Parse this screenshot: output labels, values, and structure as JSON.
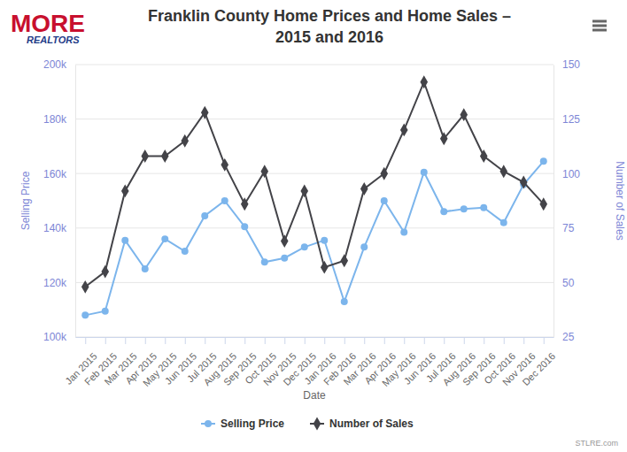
{
  "chart_data": {
    "type": "line",
    "title": "Franklin County Home Prices and Home Sales –\n2015 and 2016",
    "x_label": "Date",
    "y_label": "Selling Price",
    "y2_label": "Number of Sales",
    "annotations": [
      "MORE",
      "REALTORS",
      "STLRE.com"
    ],
    "categories": [
      "Jan 2015",
      "Feb 2015",
      "Mar 2015",
      "Apr 2015",
      "May 2015",
      "Jun 2015",
      "Jul 2015",
      "Aug 2015",
      "Sep 2015",
      "Oct 2015",
      "Nov 2015",
      "Dec 2015",
      "Jan 2016",
      "Feb 2016",
      "Mar 2016",
      "Apr 2016",
      "May 2016",
      "Jun 2016",
      "Jul 2016",
      "Aug 2016",
      "Sep 2016",
      "Oct 2016",
      "Nov 2016",
      "Dec 2016"
    ],
    "series": [
      {
        "name": "Selling Price",
        "color": "#7cb5ec",
        "marker": "circle",
        "line_style": "solid",
        "values": [
          108000,
          109500,
          135500,
          125000,
          136000,
          131500,
          144500,
          150000,
          140500,
          127500,
          129000,
          133000,
          135500,
          113000,
          133000,
          150000,
          138500,
          160500,
          146000,
          147000,
          147500,
          142000,
          156000,
          164500
        ]
      },
      {
        "name": "Number of Sales",
        "color": "#434348",
        "marker": "diamond",
        "line_style": "solid",
        "axis": "y2",
        "values": [
          48,
          55,
          92,
          108,
          108,
          115,
          128,
          104,
          86,
          101,
          69,
          92,
          57,
          60,
          93,
          100,
          120,
          142,
          116,
          127,
          108,
          101,
          96,
          86
        ]
      }
    ],
    "ylim": [
      100000,
      200000
    ],
    "yticks": [
      {
        "value": 100000,
        "label": "100k"
      },
      {
        "value": 120000,
        "label": "120k"
      },
      {
        "value": 140000,
        "label": "140k"
      },
      {
        "value": 160000,
        "label": "160k"
      },
      {
        "value": 180000,
        "label": "180k"
      },
      {
        "value": 200000,
        "label": "200k"
      }
    ],
    "y2lim": [
      25,
      150
    ],
    "y2ticks": [
      25,
      50,
      75,
      100,
      125,
      150
    ],
    "grid": true,
    "legend": "bottom"
  }
}
